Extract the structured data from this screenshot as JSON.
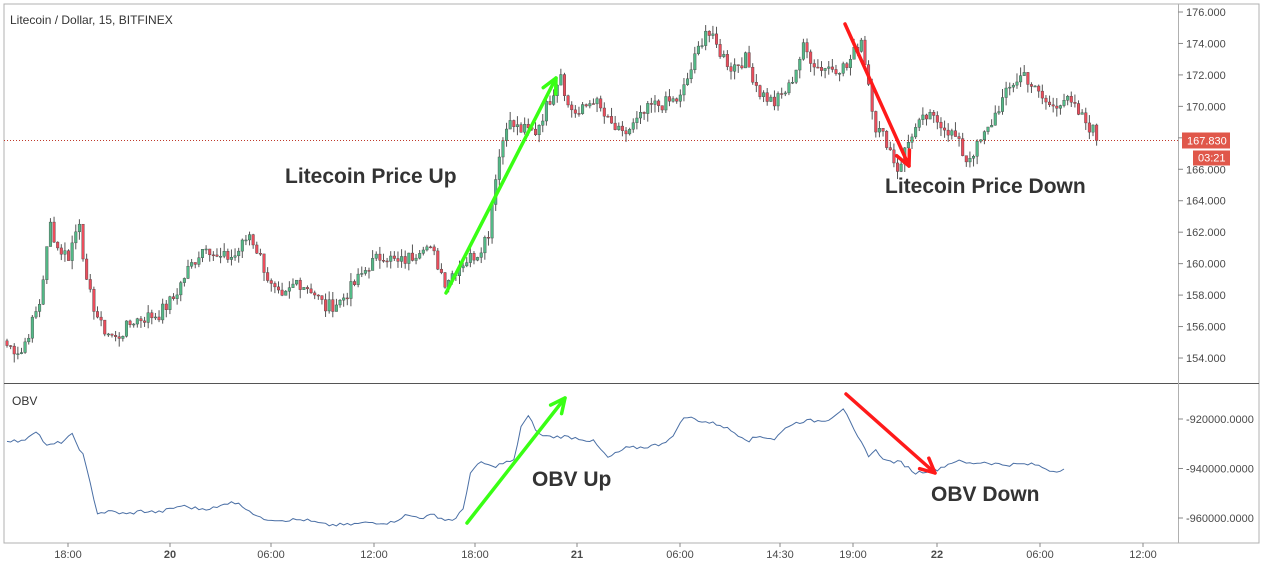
{
  "chart_data": [
    {
      "type": "candlestick",
      "title": "Litecoin / Dollar, 15, BITFINEX",
      "ylim": [
        153.0,
        176.3
      ],
      "yticks": [
        "176.000",
        "174.000",
        "172.000",
        "170.000",
        "168.000",
        "166.000",
        "164.000",
        "162.000",
        "160.000",
        "158.000",
        "156.000",
        "154.000"
      ],
      "last_price": "167.830",
      "countdown": "03:21",
      "x_labels": [
        "18:00",
        "20",
        "06:00",
        "12:00",
        "18:00",
        "21",
        "06:00",
        "14:30",
        "19:00",
        "22",
        "06:00",
        "12:00"
      ],
      "x_labels_bold": [
        "20",
        "21",
        "22"
      ],
      "colors": {
        "up": "#53b987",
        "down": "#eb4d5c",
        "wick": "#555555",
        "price_tag": "#e0574a",
        "price_line": "#c0392b"
      },
      "anchors": [
        [
          0,
          154.8
        ],
        [
          4,
          154.4
        ],
        [
          9,
          157.5
        ],
        [
          12,
          162.5
        ],
        [
          14,
          161.0
        ],
        [
          17,
          160.5
        ],
        [
          20,
          162.8
        ],
        [
          22,
          158.6
        ],
        [
          26,
          156.0
        ],
        [
          30,
          155.2
        ],
        [
          35,
          156.4
        ],
        [
          42,
          156.8
        ],
        [
          46,
          157.8
        ],
        [
          50,
          159.6
        ],
        [
          55,
          161.3
        ],
        [
          58,
          160.3
        ],
        [
          63,
          160.5
        ],
        [
          67,
          161.9
        ],
        [
          70,
          160.4
        ],
        [
          73,
          158.5
        ],
        [
          76,
          157.6
        ],
        [
          80,
          158.9
        ],
        [
          84,
          158.4
        ],
        [
          88,
          157.2
        ],
        [
          92,
          157.6
        ],
        [
          96,
          158.7
        ],
        [
          100,
          159.9
        ],
        [
          104,
          160.6
        ],
        [
          108,
          160.0
        ],
        [
          112,
          160.5
        ],
        [
          115,
          161.3
        ],
        [
          118,
          160.5
        ],
        [
          121,
          158.9
        ],
        [
          126,
          160.1
        ],
        [
          130,
          160.7
        ],
        [
          133,
          162.0
        ],
        [
          135,
          165.7
        ],
        [
          138,
          169.0
        ],
        [
          142,
          168.5
        ],
        [
          146,
          168.4
        ],
        [
          150,
          170.5
        ],
        [
          153,
          172.2
        ],
        [
          155,
          170.0
        ],
        [
          158,
          169.5
        ],
        [
          162,
          170.5
        ],
        [
          166,
          169.0
        ],
        [
          170,
          168.1
        ],
        [
          174,
          169.0
        ],
        [
          178,
          170.0
        ],
        [
          182,
          170.2
        ],
        [
          186,
          170.5
        ],
        [
          190,
          173.0
        ],
        [
          193,
          174.9
        ],
        [
          196,
          173.8
        ],
        [
          200,
          172.5
        ],
        [
          204,
          173.0
        ],
        [
          208,
          170.9
        ],
        [
          212,
          170.2
        ],
        [
          216,
          171.2
        ],
        [
          220,
          173.7
        ],
        [
          224,
          172.5
        ],
        [
          228,
          172.5
        ],
        [
          232,
          172.5
        ],
        [
          236,
          174.3
        ],
        [
          238,
          171.5
        ],
        [
          240,
          168.7
        ],
        [
          243,
          167.8
        ],
        [
          246,
          166.0
        ],
        [
          250,
          168.3
        ],
        [
          254,
          169.3
        ],
        [
          258,
          169.0
        ],
        [
          262,
          168.0
        ],
        [
          265,
          166.6
        ],
        [
          268,
          167.4
        ],
        [
          271,
          168.5
        ],
        [
          274,
          170.0
        ],
        [
          278,
          171.5
        ],
        [
          281,
          172.1
        ],
        [
          284,
          171.0
        ],
        [
          288,
          170.0
        ],
        [
          292,
          170.5
        ],
        [
          295,
          169.8
        ],
        [
          298,
          169.0
        ],
        [
          301,
          168.2
        ]
      ],
      "annotations": [
        {
          "text": "Litecoin Price Up",
          "color": "#39ff14"
        },
        {
          "text": "Litecoin Price Down",
          "color": "#ff1a1a"
        }
      ]
    },
    {
      "type": "line",
      "title": "OBV",
      "ylim": [
        -966000,
        -914000
      ],
      "yticks": [
        "-920000.0000",
        "-940000.0000",
        "-960000.0000"
      ],
      "line_color": "#4a6fa5",
      "anchors": [
        [
          0,
          -928500
        ],
        [
          4,
          -929200
        ],
        [
          8,
          -924600
        ],
        [
          11,
          -931000
        ],
        [
          15,
          -929300
        ],
        [
          18,
          -926500
        ],
        [
          21,
          -934500
        ],
        [
          25,
          -958000
        ],
        [
          29,
          -957400
        ],
        [
          33,
          -958500
        ],
        [
          37,
          -957200
        ],
        [
          42,
          -957700
        ],
        [
          48,
          -955100
        ],
        [
          53,
          -956300
        ],
        [
          58,
          -955900
        ],
        [
          62,
          -953100
        ],
        [
          66,
          -955900
        ],
        [
          70,
          -960200
        ],
        [
          76,
          -960800
        ],
        [
          82,
          -960700
        ],
        [
          88,
          -962800
        ],
        [
          94,
          -962800
        ],
        [
          100,
          -961800
        ],
        [
          106,
          -961900
        ],
        [
          110,
          -959000
        ],
        [
          115,
          -959800
        ],
        [
          118,
          -958700
        ],
        [
          121,
          -960800
        ],
        [
          124,
          -960400
        ],
        [
          126,
          -956300
        ],
        [
          128,
          -941800
        ],
        [
          131,
          -937400
        ],
        [
          134,
          -939400
        ],
        [
          138,
          -937500
        ],
        [
          140,
          -937000
        ],
        [
          142,
          -923000
        ],
        [
          144,
          -919000
        ],
        [
          147,
          -926300
        ],
        [
          150,
          -927200
        ],
        [
          154,
          -927100
        ],
        [
          158,
          -927800
        ],
        [
          162,
          -929100
        ],
        [
          166,
          -935700
        ],
        [
          171,
          -931800
        ],
        [
          176,
          -931400
        ],
        [
          180,
          -930300
        ],
        [
          184,
          -927400
        ],
        [
          186,
          -920800
        ],
        [
          188,
          -919200
        ],
        [
          192,
          -920900
        ],
        [
          197,
          -922300
        ],
        [
          202,
          -926300
        ],
        [
          205,
          -928600
        ],
        [
          208,
          -926900
        ],
        [
          212,
          -928100
        ],
        [
          216,
          -922500
        ],
        [
          220,
          -920800
        ],
        [
          224,
          -920700
        ],
        [
          227,
          -920100
        ],
        [
          231,
          -915600
        ],
        [
          234,
          -925000
        ],
        [
          236,
          -929800
        ],
        [
          238,
          -934600
        ],
        [
          240,
          -932800
        ],
        [
          243,
          -937000
        ],
        [
          247,
          -937600
        ],
        [
          251,
          -941800
        ],
        [
          254,
          -940900
        ],
        [
          257,
          -940300
        ],
        [
          262,
          -936900
        ],
        [
          266,
          -938000
        ],
        [
          270,
          -937400
        ],
        [
          275,
          -938500
        ],
        [
          280,
          -938300
        ],
        [
          284,
          -938400
        ],
        [
          289,
          -941100
        ],
        [
          292,
          -940100
        ]
      ],
      "annotations": [
        {
          "text": "OBV Up",
          "color": "#39ff14"
        },
        {
          "text": "OBV Down",
          "color": "#ff1a1a"
        }
      ]
    }
  ]
}
